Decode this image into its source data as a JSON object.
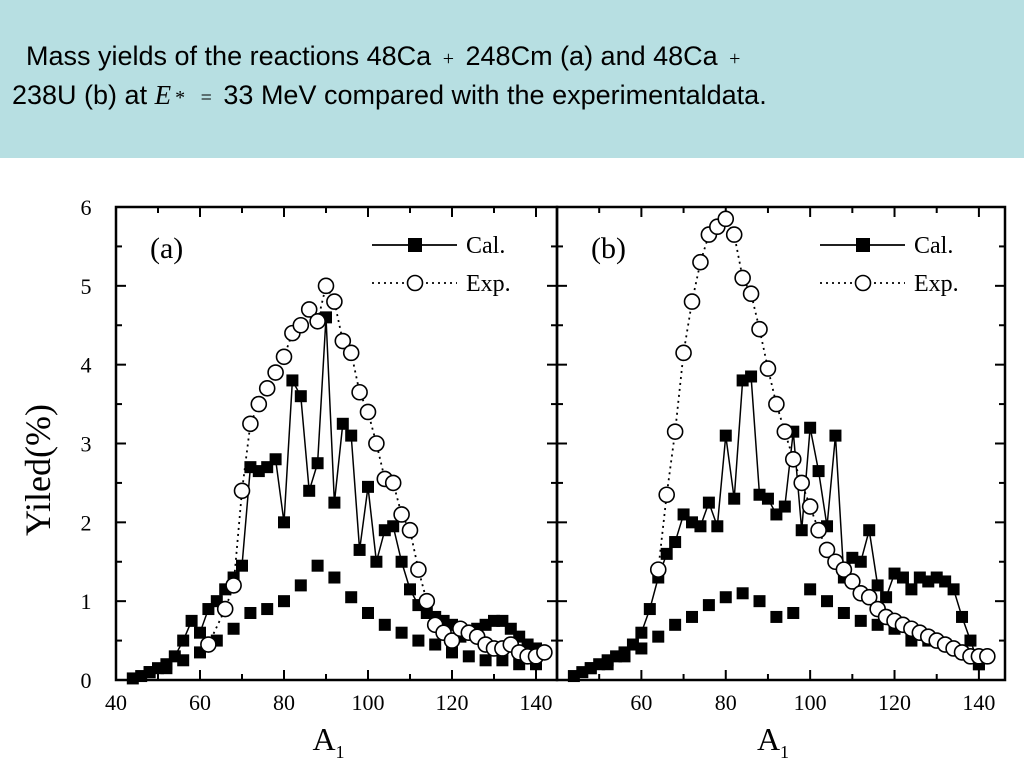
{
  "title": {
    "line1_a": "Mass yields of the reactions 48Ca",
    "plus": "+",
    "line1_b": "248Cm (a) and 48Ca",
    "line2_a": "238U (b) at",
    "energy_var": "E",
    "star": "*",
    "equals": "=",
    "line2_b": "33 MeV compared with the experimentaldata."
  },
  "colors": {
    "title_band": "#b7dfe2",
    "axes": "#000000",
    "exp_fill": "#ffffff"
  },
  "chart_data": {
    "type": "scatter",
    "ylabel": "Yiled(%)",
    "xlabel_main": "A",
    "xlabel_sub": "1",
    "y_ticks": [
      "0",
      "1",
      "2",
      "3",
      "4",
      "5",
      "6"
    ],
    "ylim": [
      0,
      6
    ],
    "legend_position": "top-right",
    "panels": [
      {
        "label": "(a)",
        "xlim": [
          40,
          145
        ],
        "x_ticks": [
          "40",
          "60",
          "80",
          "100",
          "120",
          "140"
        ],
        "legend": [
          "Cal.",
          "Exp."
        ],
        "series": [
          {
            "name": "Cal.",
            "style": "line-square",
            "x": [
              44,
              46,
              48,
              50,
              52,
              54,
              56,
              58,
              60,
              62,
              64,
              66,
              68,
              70,
              72,
              74,
              76,
              78,
              80,
              82,
              84,
              86,
              88,
              90,
              92,
              94,
              96,
              98,
              100,
              102,
              104,
              106,
              108,
              110,
              112,
              114,
              116,
              118,
              120,
              122,
              124,
              126,
              128,
              130,
              132,
              134,
              136,
              138,
              140
            ],
            "y": [
              0.02,
              0.05,
              0.1,
              0.15,
              0.2,
              0.3,
              0.5,
              0.75,
              0.6,
              0.9,
              1.0,
              1.15,
              1.3,
              1.45,
              2.7,
              2.65,
              2.7,
              2.8,
              2.0,
              3.8,
              3.6,
              2.4,
              2.75,
              4.6,
              2.25,
              3.25,
              3.1,
              1.65,
              2.45,
              1.5,
              1.9,
              1.95,
              1.5,
              1.15,
              0.95,
              0.85,
              0.8,
              0.75,
              0.7,
              0.55,
              0.6,
              0.65,
              0.7,
              0.75,
              0.75,
              0.65,
              0.55,
              0.45,
              0.4
            ]
          },
          {
            "name": "Cal. (lower envelope)",
            "style": "square",
            "x": [
              48,
              52,
              56,
              60,
              64,
              68,
              72,
              76,
              80,
              84,
              88,
              92,
              96,
              100,
              104,
              108,
              112,
              116,
              120,
              124,
              128,
              132,
              136,
              140
            ],
            "y": [
              0.1,
              0.15,
              0.25,
              0.35,
              0.5,
              0.65,
              0.85,
              0.9,
              1.0,
              1.2,
              1.45,
              1.3,
              1.05,
              0.85,
              0.7,
              0.6,
              0.5,
              0.45,
              0.35,
              0.3,
              0.25,
              0.25,
              0.2,
              0.2
            ]
          },
          {
            "name": "Exp.",
            "style": "dotted-circle",
            "x": [
              62,
              66,
              68,
              70,
              72,
              74,
              76,
              78,
              80,
              82,
              84,
              86,
              88,
              90,
              92,
              94,
              96,
              98,
              100,
              102,
              104,
              106,
              108,
              110,
              112,
              114,
              116,
              118,
              120,
              122,
              124,
              126,
              128,
              130,
              132,
              134,
              136,
              138,
              140,
              142
            ],
            "y": [
              0.45,
              0.9,
              1.2,
              2.4,
              3.25,
              3.5,
              3.7,
              3.9,
              4.1,
              4.4,
              4.5,
              4.7,
              4.55,
              5.0,
              4.8,
              4.3,
              4.15,
              3.65,
              3.4,
              3.0,
              2.55,
              2.5,
              2.1,
              1.9,
              1.4,
              1.0,
              0.7,
              0.6,
              0.5,
              0.65,
              0.6,
              0.55,
              0.45,
              0.4,
              0.4,
              0.45,
              0.35,
              0.3,
              0.3,
              0.35
            ]
          }
        ]
      },
      {
        "label": "(b)",
        "xlim": [
          40,
          145
        ],
        "x_ticks": [
          "60",
          "80",
          "100",
          "120",
          "140"
        ],
        "legend": [
          "Cal.",
          "Exp."
        ],
        "series": [
          {
            "name": "Cal.",
            "style": "line-square",
            "x": [
              44,
              46,
              48,
              50,
              52,
              54,
              56,
              58,
              60,
              62,
              64,
              66,
              68,
              70,
              72,
              74,
              76,
              78,
              80,
              82,
              84,
              86,
              88,
              90,
              92,
              94,
              96,
              98,
              100,
              102,
              104,
              106,
              108,
              110,
              112,
              114,
              116,
              118,
              120,
              122,
              124,
              126,
              128,
              130,
              132,
              134,
              136,
              138,
              140
            ],
            "y": [
              0.05,
              0.1,
              0.15,
              0.2,
              0.25,
              0.3,
              0.35,
              0.45,
              0.6,
              0.9,
              1.3,
              1.6,
              1.75,
              2.1,
              2.0,
              1.95,
              2.25,
              1.95,
              3.1,
              2.3,
              3.8,
              3.85,
              2.35,
              2.3,
              2.1,
              2.2,
              3.15,
              1.9,
              3.2,
              2.65,
              1.95,
              3.1,
              1.3,
              1.55,
              1.5,
              1.9,
              1.2,
              1.05,
              1.35,
              1.3,
              1.15,
              1.3,
              1.25,
              1.3,
              1.25,
              1.15,
              0.8,
              0.5,
              0.2
            ]
          },
          {
            "name": "Cal. (lower envelope)",
            "style": "square",
            "x": [
              48,
              52,
              56,
              60,
              64,
              68,
              72,
              76,
              80,
              84,
              88,
              92,
              96,
              100,
              104,
              108,
              112,
              116,
              120,
              124,
              128,
              132,
              136,
              140
            ],
            "y": [
              0.15,
              0.2,
              0.3,
              0.4,
              0.55,
              0.7,
              0.8,
              0.95,
              1.05,
              1.1,
              1.0,
              0.8,
              0.85,
              1.15,
              1.0,
              0.85,
              0.75,
              0.7,
              0.65,
              0.5,
              0.5,
              0.45,
              0.35,
              0.2
            ]
          },
          {
            "name": "Exp.",
            "style": "dotted-circle",
            "x": [
              64,
              66,
              68,
              70,
              72,
              74,
              76,
              78,
              80,
              82,
              84,
              86,
              88,
              90,
              92,
              94,
              96,
              98,
              100,
              102,
              104,
              106,
              108,
              110,
              112,
              114,
              116,
              118,
              120,
              122,
              124,
              126,
              128,
              130,
              132,
              134,
              136,
              138,
              140,
              142
            ],
            "y": [
              1.4,
              2.35,
              3.15,
              4.15,
              4.8,
              5.3,
              5.65,
              5.75,
              5.85,
              5.65,
              5.1,
              4.9,
              4.45,
              3.95,
              3.5,
              3.15,
              2.8,
              2.5,
              2.2,
              1.9,
              1.65,
              1.5,
              1.4,
              1.25,
              1.1,
              1.05,
              0.9,
              0.8,
              0.75,
              0.7,
              0.65,
              0.6,
              0.55,
              0.5,
              0.45,
              0.4,
              0.35,
              0.3,
              0.3,
              0.3
            ]
          }
        ]
      }
    ]
  }
}
